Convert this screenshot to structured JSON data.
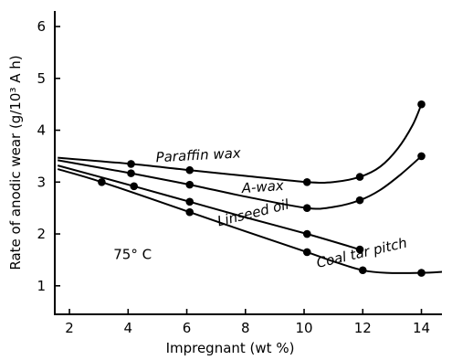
{
  "chart_data": {
    "type": "line",
    "xlabel": "Impregnant (wt %)",
    "ylabel": "Rate of anodic wear (g/10³ A h)",
    "xlim": [
      1.5,
      14.7
    ],
    "ylim": [
      0.45,
      6.3
    ],
    "xticks": [
      2,
      4,
      6,
      8,
      10,
      12,
      14
    ],
    "yticks": [
      1,
      2,
      3,
      4,
      5,
      6
    ],
    "annotation": "75° C",
    "series": [
      {
        "name": "Paraffin wax",
        "points": [
          [
            4.1,
            3.35
          ],
          [
            6.1,
            3.23
          ],
          [
            10.1,
            3.0
          ],
          [
            11.9,
            3.1
          ],
          [
            14.0,
            4.5
          ]
        ],
        "curve": [
          [
            1.6,
            3.47
          ],
          [
            4.1,
            3.35
          ],
          [
            6.1,
            3.23
          ],
          [
            8.0,
            3.12
          ],
          [
            10.1,
            3.0
          ],
          [
            11.0,
            3.0
          ],
          [
            11.9,
            3.1
          ],
          [
            12.6,
            3.3
          ],
          [
            13.2,
            3.65
          ],
          [
            13.7,
            4.1
          ],
          [
            14.0,
            4.5
          ]
        ]
      },
      {
        "name": "A-wax",
        "points": [
          [
            4.1,
            3.17
          ],
          [
            6.1,
            2.95
          ],
          [
            10.1,
            2.5
          ],
          [
            11.9,
            2.65
          ],
          [
            14.0,
            3.5
          ]
        ],
        "curve": [
          [
            1.6,
            3.42
          ],
          [
            4.1,
            3.17
          ],
          [
            6.1,
            2.95
          ],
          [
            8.0,
            2.72
          ],
          [
            10.1,
            2.5
          ],
          [
            11.0,
            2.52
          ],
          [
            11.9,
            2.65
          ],
          [
            12.6,
            2.85
          ],
          [
            13.3,
            3.15
          ],
          [
            14.0,
            3.5
          ]
        ]
      },
      {
        "name": "Linseed oil",
        "points": [
          [
            4.2,
            2.92
          ],
          [
            6.1,
            2.62
          ],
          [
            10.1,
            2.0
          ],
          [
            11.9,
            1.7
          ]
        ],
        "curve": [
          [
            1.6,
            3.32
          ],
          [
            4.2,
            2.92
          ],
          [
            6.1,
            2.62
          ],
          [
            8.0,
            2.32
          ],
          [
            10.1,
            2.0
          ],
          [
            11.9,
            1.7
          ]
        ]
      },
      {
        "name": "Coal tar pitch",
        "points": [
          [
            3.1,
            3.0
          ],
          [
            6.1,
            2.42
          ],
          [
            10.1,
            1.65
          ],
          [
            12.0,
            1.3
          ],
          [
            14.0,
            1.25
          ]
        ],
        "curve": [
          [
            1.6,
            3.25
          ],
          [
            3.1,
            3.0
          ],
          [
            6.1,
            2.42
          ],
          [
            8.0,
            2.05
          ],
          [
            10.1,
            1.65
          ],
          [
            11.1,
            1.45
          ],
          [
            12.0,
            1.3
          ],
          [
            12.8,
            1.25
          ],
          [
            14.0,
            1.25
          ],
          [
            14.7,
            1.27
          ]
        ]
      }
    ]
  }
}
